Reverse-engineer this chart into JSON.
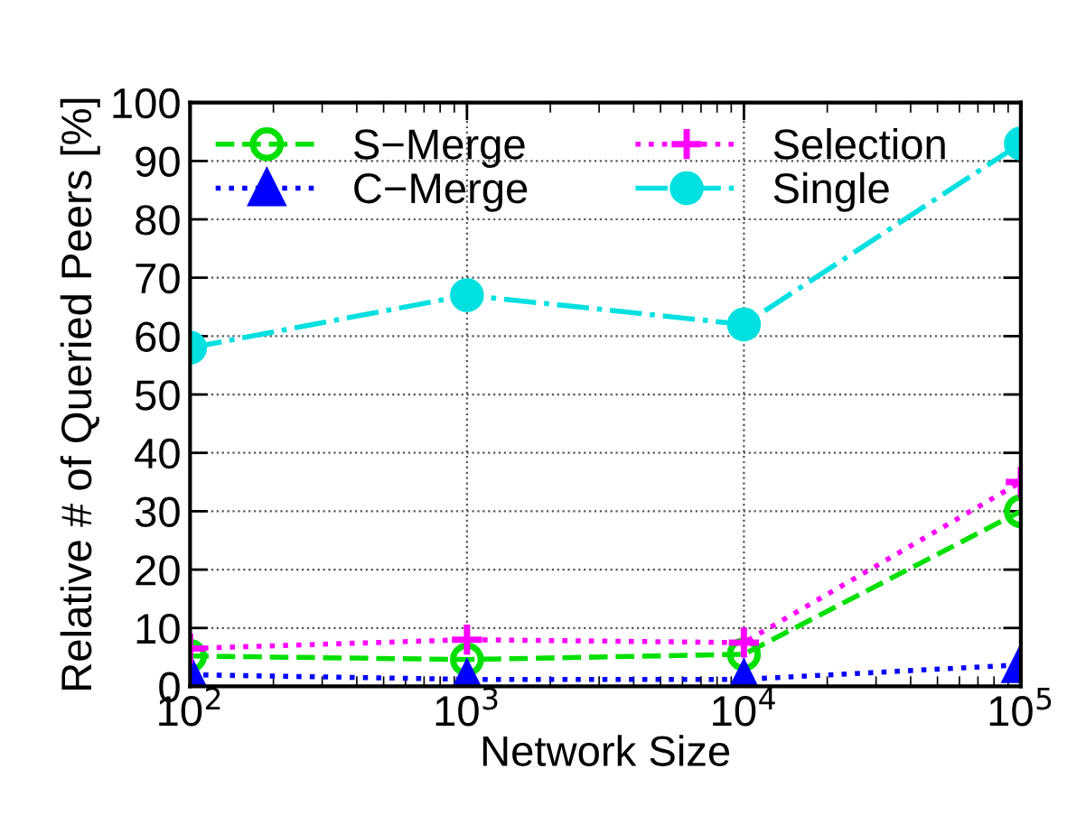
{
  "chart_data": {
    "type": "line",
    "xlabel": "Network Size",
    "ylabel": "Relative # of Queried Peers [%]",
    "log": "x",
    "x": [
      100,
      1000,
      10000,
      100000
    ],
    "xlim": [
      100,
      100000
    ],
    "xticks": [
      {
        "value": 100,
        "label": "10$^{2}$"
      },
      {
        "value": 1000,
        "label": "10$^{3}$"
      },
      {
        "value": 10000,
        "label": "10$^{4}$"
      },
      {
        "value": 100000,
        "label": "10$^{5}$"
      }
    ],
    "ylim": [
      0,
      100
    ],
    "yticks": [
      0,
      10,
      20,
      30,
      40,
      50,
      60,
      70,
      80,
      90,
      100
    ],
    "grid": true,
    "legend": "top left",
    "series": [
      {
        "name": "S−Merge",
        "color": "#00e000",
        "marker": "circle",
        "line_style": "dashed",
        "values": [
          5.2,
          4.6,
          5.5,
          30
        ]
      },
      {
        "name": "C−Merge",
        "color": "#0000ff",
        "marker": "triangle",
        "line_style": "dotted",
        "values": [
          2,
          1.2,
          1.2,
          3.7
        ]
      },
      {
        "name": "Selection",
        "color": "#ff00ff",
        "marker": "cross",
        "line_style": "dotted",
        "values": [
          6.5,
          8,
          7.5,
          35
        ]
      },
      {
        "name": "Single",
        "color": "#00e0e0",
        "marker": "circle",
        "line_style": "dashdot",
        "values": [
          58,
          67,
          62,
          93
        ]
      }
    ]
  }
}
